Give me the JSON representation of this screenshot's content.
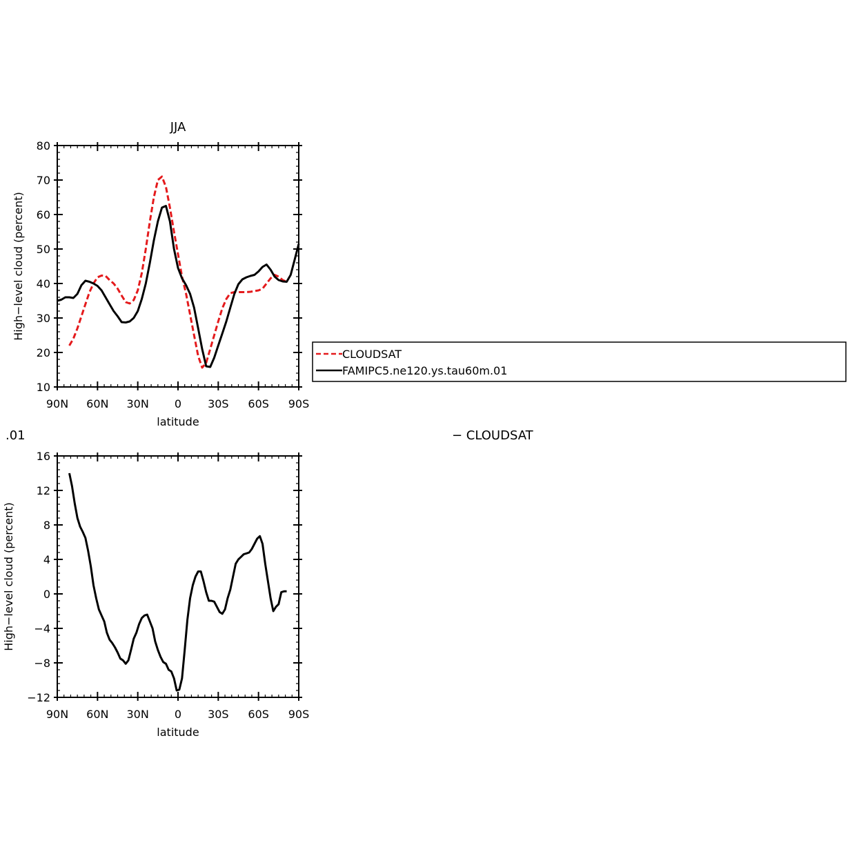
{
  "colors": {
    "cloudsat": "#e41a1c",
    "model": "#000000",
    "frame": "#000000",
    "background": "#ffffff"
  },
  "right_label": "− CLOUDSAT",
  "chart_data": [
    {
      "type": "line",
      "title": "JJA",
      "left_title": "",
      "xlabel": "latitude",
      "ylabel": "High−level cloud (percent)",
      "xlim": [
        -90,
        90
      ],
      "ylim": [
        10,
        80
      ],
      "x_tick_values": [
        -90,
        -60,
        -30,
        0,
        30,
        60,
        90
      ],
      "x_tick_labels": [
        "90N",
        "60N",
        "30N",
        "0",
        "30S",
        "60S",
        "90S"
      ],
      "y_tick_values": [
        10,
        20,
        30,
        40,
        50,
        60,
        70,
        80
      ],
      "y_tick_labels": [
        "10",
        "20",
        "30",
        "40",
        "50",
        "60",
        "70",
        "80"
      ],
      "legend": {
        "placement": "right",
        "entries": [
          "CLOUDSAT",
          "FAMIPC5.ne120.ys.tau60m.01"
        ]
      },
      "series": [
        {
          "name": "CLOUDSAT",
          "style": "dashed",
          "color": "#e41a1c",
          "x": [
            -81,
            -78,
            -75,
            -72,
            -69,
            -66,
            -63,
            -60,
            -57,
            -54,
            -51,
            -48,
            -45,
            -42,
            -39,
            -36,
            -33,
            -30,
            -27,
            -24,
            -21,
            -18,
            -15,
            -12,
            -9,
            -6,
            -3,
            0,
            3,
            6,
            9,
            12,
            15,
            18,
            21,
            24,
            27,
            30,
            33,
            36,
            39,
            42,
            45,
            48,
            51,
            54,
            57,
            60,
            63,
            66,
            69,
            72,
            75,
            78,
            81
          ],
          "y": [
            22,
            24,
            27,
            30.5,
            34,
            37.5,
            40,
            41.8,
            42.3,
            42.2,
            41,
            40,
            38.5,
            36.5,
            34.6,
            34.2,
            35.2,
            38,
            43,
            50,
            58,
            65,
            70,
            71,
            68,
            62,
            55,
            48.5,
            42,
            37,
            31,
            25,
            19,
            15.6,
            17,
            21,
            25,
            29,
            32.8,
            35.5,
            37.2,
            37.5,
            37.5,
            37.5,
            37.5,
            37.6,
            37.8,
            38,
            38.5,
            40,
            41.5,
            42.5,
            42,
            41,
            40.5
          ]
        },
        {
          "name": "FAMIPC5.ne120.ys.tau60m.01",
          "style": "solid",
          "color": "#000000",
          "x": [
            -90,
            -87,
            -84,
            -81,
            -78,
            -75,
            -72,
            -69,
            -66,
            -63,
            -60,
            -57,
            -54,
            -51,
            -48,
            -45,
            -42,
            -39,
            -36,
            -33,
            -30,
            -27,
            -24,
            -21,
            -18,
            -15,
            -12,
            -9,
            -6,
            -3,
            0,
            3,
            6,
            9,
            12,
            15,
            18,
            21,
            24,
            27,
            30,
            33,
            36,
            39,
            42,
            45,
            48,
            51,
            54,
            57,
            60,
            63,
            66,
            69,
            72,
            75,
            78,
            81,
            84,
            87,
            90
          ],
          "y": [
            35,
            35.3,
            36,
            36,
            35.8,
            37,
            39.5,
            40.8,
            40.5,
            40,
            39.3,
            38,
            36,
            34,
            32,
            30.5,
            28.8,
            28.7,
            29,
            30,
            32,
            35.5,
            40,
            46,
            52.5,
            58,
            62,
            62.5,
            58,
            50,
            44.5,
            41.5,
            39.5,
            37,
            33,
            27,
            21,
            16,
            15.8,
            18.5,
            22,
            25.5,
            29,
            33,
            37,
            39.8,
            41.2,
            41.8,
            42.2,
            42.5,
            43.5,
            44.8,
            45.5,
            44,
            42,
            41,
            40.6,
            40.5,
            42.5,
            47,
            51.5
          ]
        }
      ]
    },
    {
      "type": "line",
      "title": "",
      "left_title": ".01",
      "xlabel": "latitude",
      "ylabel": "High−level cloud (percent)",
      "xlim": [
        -90,
        90
      ],
      "ylim": [
        -12,
        16
      ],
      "x_tick_values": [
        -90,
        -60,
        -30,
        0,
        30,
        60,
        90
      ],
      "x_tick_labels": [
        "90N",
        "60N",
        "30N",
        "0",
        "30S",
        "60S",
        "90S"
      ],
      "y_tick_values": [
        -12,
        -8,
        -4,
        0,
        4,
        8,
        12,
        16
      ],
      "y_tick_labels": [
        "−12",
        "−8",
        "−4",
        "0",
        "4",
        "8",
        "12",
        "16"
      ],
      "series": [
        {
          "style": "solid",
          "color": "#000000",
          "x": [
            -81,
            -79,
            -77,
            -75,
            -73,
            -71,
            -69,
            -67,
            -65,
            -63,
            -61,
            -59,
            -57,
            -55,
            -53,
            -51,
            -49,
            -47,
            -45,
            -43,
            -41,
            -39,
            -37,
            -35,
            -33,
            -31,
            -29,
            -27,
            -25,
            -23,
            -21,
            -19,
            -17,
            -15,
            -13,
            -11,
            -9,
            -7,
            -5,
            -3,
            -1,
            1,
            3,
            5,
            7,
            9,
            11,
            13,
            15,
            17,
            19,
            21,
            23,
            25,
            27,
            29,
            31,
            33,
            35,
            37,
            39,
            41,
            43,
            45,
            47,
            49,
            51,
            53,
            55,
            57,
            59,
            61,
            63,
            65,
            67,
            69,
            71,
            73,
            75,
            77,
            79,
            81
          ],
          "y": [
            14,
            12.5,
            10.5,
            8.8,
            7.8,
            7.2,
            6.5,
            5,
            3.2,
            1,
            -0.5,
            -1.8,
            -2.5,
            -3.2,
            -4.5,
            -5.3,
            -5.7,
            -6.2,
            -6.8,
            -7.5,
            -7.7,
            -8.1,
            -7.7,
            -6.5,
            -5.2,
            -4.5,
            -3.5,
            -2.8,
            -2.5,
            -2.4,
            -3.2,
            -4,
            -5.5,
            -6.5,
            -7.3,
            -7.9,
            -8.1,
            -8.8,
            -9,
            -9.8,
            -11.2,
            -11.1,
            -9.8,
            -6.5,
            -3,
            -0.5,
            1,
            2,
            2.6,
            2.6,
            1.5,
            0.2,
            -0.8,
            -0.8,
            -0.9,
            -1.5,
            -2.1,
            -2.3,
            -1.8,
            -0.5,
            0.5,
            2,
            3.5,
            4,
            4.3,
            4.6,
            4.7,
            4.8,
            5.2,
            5.8,
            6.4,
            6.7,
            5.8,
            3.5,
            1.5,
            -0.5,
            -2,
            -1.5,
            -1.2,
            0.2,
            0.3,
            0.3
          ]
        }
      ]
    }
  ]
}
